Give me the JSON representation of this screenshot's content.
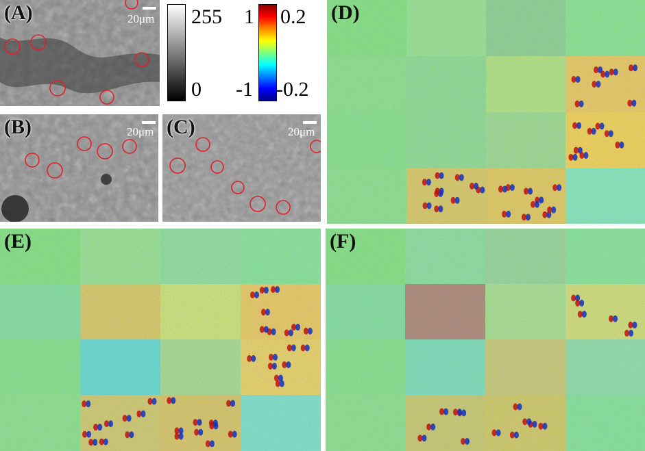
{
  "panels": {
    "A": {
      "label": "(A)",
      "scale_label": "20μm"
    },
    "B": {
      "label": "(B)",
      "scale_label": "20μm"
    },
    "C": {
      "label": "(C)",
      "scale_label": "20μm"
    },
    "D": {
      "label": "(D)"
    },
    "E": {
      "label": "(E)"
    },
    "F": {
      "label": "(F)"
    }
  },
  "colorbars": {
    "gray": {
      "max": "255",
      "min": "0"
    },
    "jet": {
      "max_left": "1",
      "max_right": "0.2",
      "min_left": "-1",
      "min_right": "-0.2"
    }
  },
  "colors": {
    "background": "#ffffff",
    "circle_marker": "#e0202a",
    "map_base": "#7fe07a",
    "map_green": "#9be37a"
  }
}
